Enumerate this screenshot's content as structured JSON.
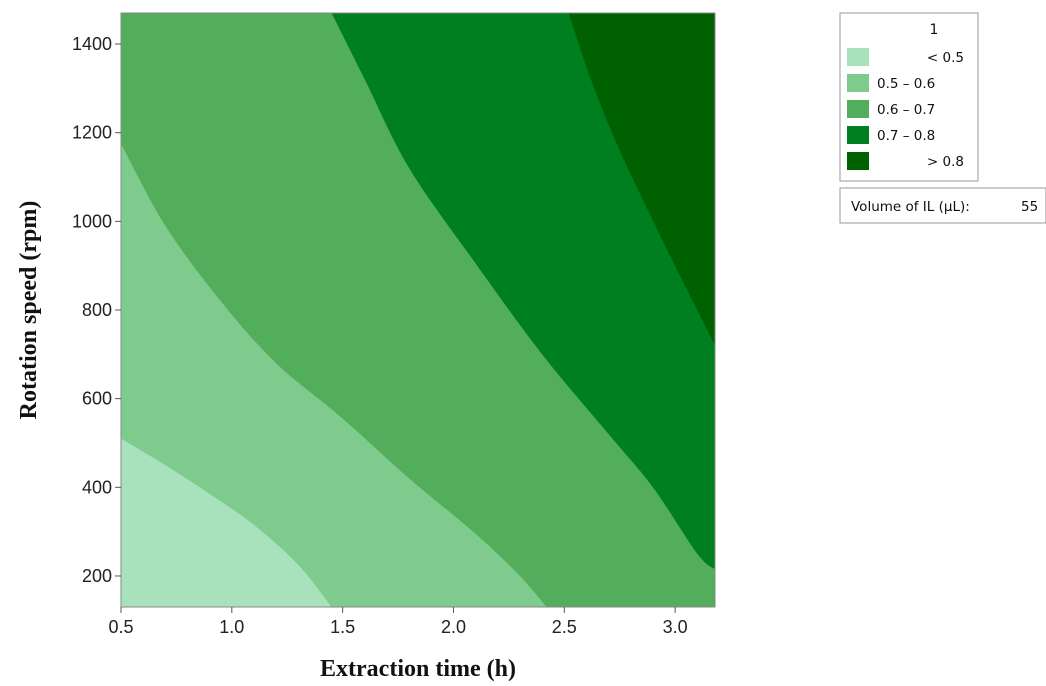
{
  "chart_data": {
    "type": "contour",
    "xlabel": "Extraction time (h)",
    "ylabel": "Rotation speed (rpm)",
    "xlim": [
      0.5,
      3.18
    ],
    "ylim": [
      130,
      1470
    ],
    "x_ticks": [
      "0.5",
      "1.0",
      "1.5",
      "2.0",
      "2.5",
      "3.0"
    ],
    "y_ticks": [
      "200",
      "400",
      "600",
      "800",
      "1000",
      "1200",
      "1400"
    ],
    "legend": {
      "title": "1",
      "placement": "top-right",
      "entries": [
        {
          "label": "< 0.5",
          "color": "#a8e2bc"
        },
        {
          "label": "0.5  –  0.6",
          "color": "#7fcb8d"
        },
        {
          "label": "0.6  –  0.7",
          "color": "#52ae5a"
        },
        {
          "label": "0.7  –  0.8",
          "color": "#007f20"
        },
        {
          "label": "> 0.8",
          "color": "#006100"
        }
      ]
    },
    "condition": {
      "label": "Volume of IL (µL):",
      "value": "55"
    },
    "contours": [
      {
        "level": 0.5,
        "points": [
          [
            0.5,
            510
          ],
          [
            0.7,
            450
          ],
          [
            0.9,
            385
          ],
          [
            1.1,
            315
          ],
          [
            1.3,
            225
          ],
          [
            1.45,
            130
          ]
        ]
      },
      {
        "level": 0.6,
        "points": [
          [
            0.5,
            1175
          ],
          [
            0.7,
            990
          ],
          [
            0.95,
            820
          ],
          [
            1.2,
            680
          ],
          [
            1.5,
            555
          ],
          [
            1.8,
            420
          ],
          [
            2.1,
            295
          ],
          [
            2.3,
            200
          ],
          [
            2.42,
            130
          ]
        ]
      },
      {
        "level": 0.7,
        "points": [
          [
            1.45,
            1470
          ],
          [
            1.6,
            1320
          ],
          [
            1.8,
            1120
          ],
          [
            2.1,
            905
          ],
          [
            2.4,
            700
          ],
          [
            2.7,
            520
          ],
          [
            2.9,
            400
          ],
          [
            3.1,
            250
          ],
          [
            3.18,
            215
          ]
        ]
      },
      {
        "level": 0.8,
        "points": [
          [
            2.52,
            1470
          ],
          [
            2.62,
            1320
          ],
          [
            2.75,
            1160
          ],
          [
            2.95,
            950
          ],
          [
            3.1,
            800
          ],
          [
            3.18,
            720
          ]
        ]
      }
    ]
  }
}
